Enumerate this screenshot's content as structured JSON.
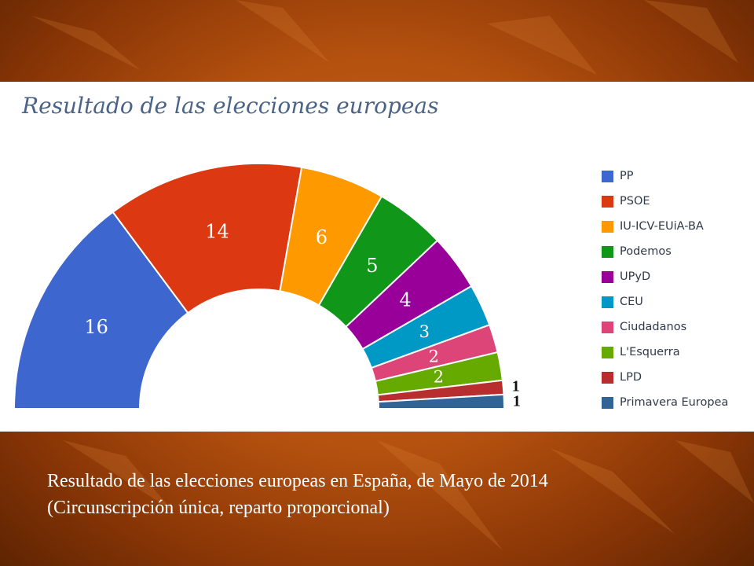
{
  "chart_data": {
    "type": "pie",
    "subtype": "parliament-half-donut",
    "title": "Resultado de las elecciones europeas",
    "categories": [
      "PP",
      "PSOE",
      "IU-ICV-EUiA-BA",
      "Podemos",
      "UPyD",
      "CEU",
      "Ciudadanos",
      "L'Esquerra",
      "LPD",
      "Primavera Europea"
    ],
    "values": [
      16,
      14,
      6,
      5,
      4,
      3,
      2,
      2,
      1,
      1
    ],
    "colors": [
      "#3d67cf",
      "#dc3912",
      "#ff9900",
      "#109618",
      "#990099",
      "#0099c6",
      "#dd4477",
      "#66aa00",
      "#b82e2e",
      "#316395"
    ],
    "legend_position": "right"
  },
  "caption": {
    "line1": "Resultado de las elecciones europeas en España, de Mayo de 2014",
    "line2": "(Circunscripción única, reparto proporcional)"
  }
}
